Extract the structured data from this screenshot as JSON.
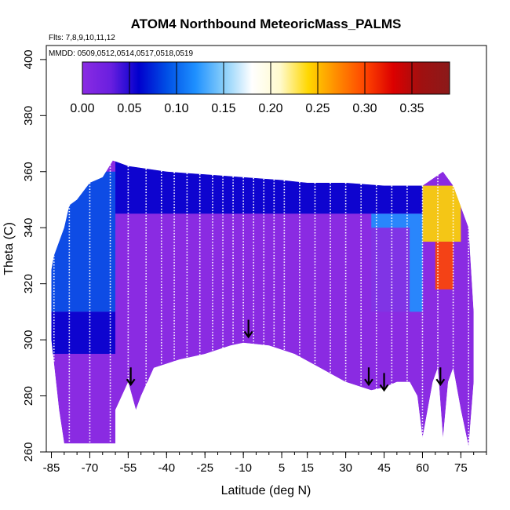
{
  "chart_data": {
    "type": "heatmap",
    "title": "ATOM4 Northbound MeteoricMass_PALMS",
    "flights_text": "Flts: 7,8,9,10,11,12",
    "dates_text": "MMDD: 0509,0512,0514,0517,0518,0519",
    "xlabel": "Latitude (deg N)",
    "ylabel": "Theta (C)",
    "xlim": [
      -87,
      85
    ],
    "ylim": [
      260,
      405
    ],
    "x_ticks": [
      -85,
      -70,
      -55,
      -40,
      -25,
      -10,
      5,
      15,
      30,
      45,
      60,
      75
    ],
    "x_tick_labels": [
      "-85",
      "-70",
      "-55",
      "-40",
      "-25",
      "-10",
      "5",
      "15",
      "30",
      "45",
      "60",
      "75"
    ],
    "y_ticks": [
      260,
      280,
      300,
      320,
      340,
      360,
      380,
      400
    ],
    "y_tick_labels": [
      "260",
      "280",
      "300",
      "320",
      "340",
      "360",
      "380",
      "400"
    ],
    "colorbar": {
      "range": [
        0.0,
        0.39
      ],
      "ticks": [
        0.0,
        0.05,
        0.1,
        0.15,
        0.2,
        0.25,
        0.3,
        0.35
      ],
      "tick_labels": [
        "0.00",
        "0.05",
        "0.10",
        "0.15",
        "0.20",
        "0.25",
        "0.30",
        "0.35"
      ],
      "colors": [
        "#8a2be2",
        "#6a1fe0",
        "#0000cd",
        "#0050e6",
        "#1e90ff",
        "#87cefa",
        "#ffffff",
        "#fffacd",
        "#ffd700",
        "#ff8c00",
        "#ff4500",
        "#dc0000",
        "#a01010",
        "#8b1a1a"
      ]
    },
    "data_extent": {
      "top_theta": [
        [
          -85,
          325
        ],
        [
          -84,
          330
        ],
        [
          -80,
          340
        ],
        [
          -78,
          348
        ],
        [
          -75,
          350
        ],
        [
          -70,
          356
        ],
        [
          -65,
          358
        ],
        [
          -61,
          364
        ],
        [
          -55,
          362
        ],
        [
          -40,
          360
        ],
        [
          -25,
          359
        ],
        [
          -10,
          358
        ],
        [
          5,
          357
        ],
        [
          15,
          356
        ],
        [
          30,
          356
        ],
        [
          45,
          355
        ],
        [
          55,
          355
        ],
        [
          60,
          355
        ],
        [
          68,
          360
        ],
        [
          72,
          355
        ],
        [
          78,
          340
        ],
        [
          80,
          310
        ]
      ],
      "bottom_theta": [
        [
          -85,
          300
        ],
        [
          -82,
          275
        ],
        [
          -80,
          263
        ],
        [
          -70,
          263
        ],
        [
          -60,
          263
        ],
        [
          -60,
          275
        ],
        [
          -55,
          285
        ],
        [
          -52,
          275
        ],
        [
          -50,
          280
        ],
        [
          -45,
          290
        ],
        [
          -35,
          293
        ],
        [
          -25,
          295
        ],
        [
          -15,
          298
        ],
        [
          -10,
          299
        ],
        [
          0,
          298
        ],
        [
          10,
          295
        ],
        [
          20,
          290
        ],
        [
          30,
          285
        ],
        [
          40,
          282
        ],
        [
          45,
          283
        ],
        [
          50,
          285
        ],
        [
          55,
          285
        ],
        [
          58,
          280
        ],
        [
          60,
          265
        ],
        [
          62,
          275
        ],
        [
          64,
          285
        ],
        [
          66,
          290
        ],
        [
          68,
          265
        ],
        [
          70,
          285
        ],
        [
          72,
          290
        ],
        [
          75,
          275
        ],
        [
          78,
          262
        ],
        [
          80,
          285
        ]
      ]
    },
    "value_regions": [
      {
        "lat": [
          -85,
          -60
        ],
        "theta": [
          310,
          360
        ],
        "value": 0.1
      },
      {
        "lat": [
          -85,
          -60
        ],
        "theta": [
          295,
          310
        ],
        "value": 0.05
      },
      {
        "lat": [
          -60,
          60
        ],
        "theta": [
          345,
          365
        ],
        "value": 0.05
      },
      {
        "lat": [
          40,
          60
        ],
        "theta": [
          310,
          345
        ],
        "value": 0.12
      },
      {
        "lat": [
          60,
          75
        ],
        "theta": [
          335,
          355
        ],
        "value": 0.24
      },
      {
        "lat": [
          65,
          72
        ],
        "theta": [
          318,
          335
        ],
        "value": 0.3
      },
      {
        "lat": [
          -60,
          55
        ],
        "theta": [
          285,
          340
        ],
        "value": 0.01
      }
    ],
    "flight_track_lats": [
      -84,
      -78,
      -70,
      -62,
      -55,
      -48,
      -42,
      -37,
      -32,
      -27,
      -22,
      -18,
      -14,
      -10,
      -6,
      -2,
      2,
      6,
      12,
      18,
      24,
      30,
      36,
      42,
      48,
      54,
      60,
      66,
      72,
      78
    ],
    "arrow_markers": [
      {
        "lat": -54,
        "theta": 284
      },
      {
        "lat": -8,
        "theta": 301
      },
      {
        "lat": 39,
        "theta": 284
      },
      {
        "lat": 45,
        "theta": 282
      },
      {
        "lat": 67,
        "theta": 284
      }
    ]
  }
}
